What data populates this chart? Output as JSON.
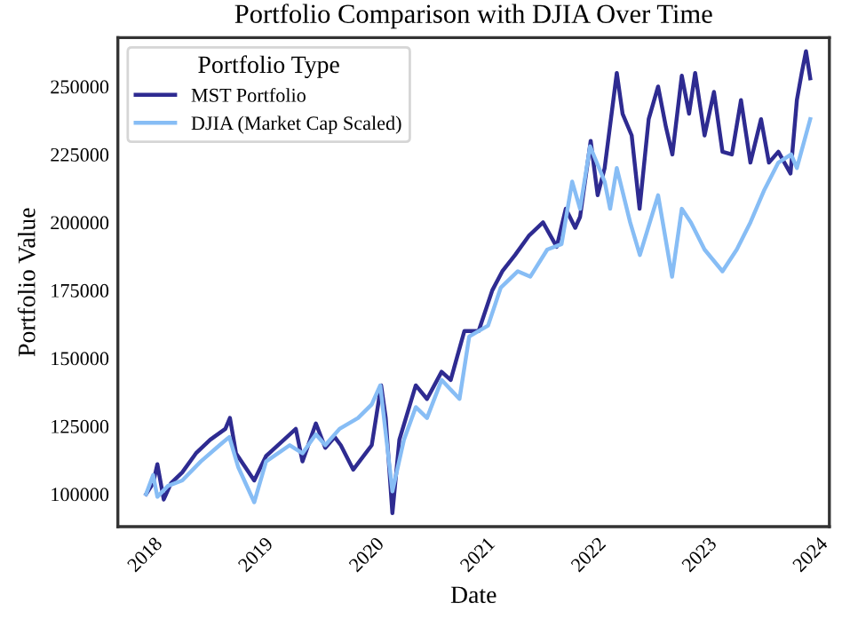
{
  "chart_data": {
    "type": "line",
    "title": "Portfolio Comparison with DJIA Over Time",
    "xlabel": "Date",
    "ylabel": "Portfolio Value",
    "legend_title": "Portfolio Type",
    "legend": "top left",
    "grid": false,
    "marker": "none",
    "line_style": "solid",
    "xlim": [
      "2017-10-01",
      "2024-03-01"
    ],
    "xticks": [
      {
        "value": "2018-01-01",
        "label": "2018"
      },
      {
        "value": "2019-01-01",
        "label": "2019"
      },
      {
        "value": "2020-01-01",
        "label": "2020"
      },
      {
        "value": "2021-01-01",
        "label": "2021"
      },
      {
        "value": "2022-01-01",
        "label": "2022"
      },
      {
        "value": "2023-01-01",
        "label": "2023"
      },
      {
        "value": "2024-01-01",
        "label": "2024"
      }
    ],
    "ylim": [
      88000,
      268000
    ],
    "yticks": [
      100000,
      125000,
      150000,
      175000,
      200000,
      225000,
      250000
    ],
    "series": [
      {
        "name": "MST Portfolio",
        "color": "#2e2b91",
        "x": [
          "2018-01-02",
          "2018-01-25",
          "2018-02-08",
          "2018-03-01",
          "2018-03-25",
          "2018-05-01",
          "2018-06-15",
          "2018-08-01",
          "2018-09-20",
          "2018-10-05",
          "2018-10-25",
          "2018-12-24",
          "2019-02-01",
          "2019-04-01",
          "2019-05-10",
          "2019-06-01",
          "2019-07-15",
          "2019-08-15",
          "2019-09-15",
          "2019-10-05",
          "2019-11-15",
          "2020-01-15",
          "2020-02-15",
          "2020-03-01",
          "2020-03-23",
          "2020-04-15",
          "2020-06-08",
          "2020-07-15",
          "2020-09-01",
          "2020-10-01",
          "2020-11-15",
          "2021-01-01",
          "2021-02-15",
          "2021-03-20",
          "2021-05-01",
          "2021-06-15",
          "2021-08-01",
          "2021-09-15",
          "2021-10-15",
          "2021-11-15",
          "2021-12-01",
          "2022-01-05",
          "2022-01-28",
          "2022-02-20",
          "2022-04-01",
          "2022-04-20",
          "2022-05-20",
          "2022-06-15",
          "2022-07-15",
          "2022-08-15",
          "2022-09-10",
          "2022-10-01",
          "2022-11-01",
          "2022-11-25",
          "2022-12-15",
          "2023-01-15",
          "2023-02-15",
          "2023-03-15",
          "2023-04-15",
          "2023-05-15",
          "2023-06-15",
          "2023-07-20",
          "2023-08-15",
          "2023-09-15",
          "2023-10-25",
          "2023-11-15",
          "2023-12-01",
          "2023-12-15",
          "2023-12-29"
        ],
        "values": [
          100000,
          104000,
          111000,
          98000,
          104000,
          108000,
          115000,
          120000,
          124000,
          128000,
          115000,
          105000,
          114000,
          120000,
          124000,
          112000,
          126000,
          117000,
          121000,
          118000,
          109000,
          118000,
          140000,
          128000,
          93000,
          120000,
          140000,
          135000,
          145000,
          142000,
          160000,
          160000,
          175000,
          182000,
          188000,
          195000,
          200000,
          191000,
          205000,
          198000,
          202000,
          230000,
          210000,
          220000,
          255000,
          240000,
          232000,
          205000,
          238000,
          250000,
          235000,
          225000,
          254000,
          240000,
          255000,
          232000,
          248000,
          226000,
          225000,
          245000,
          222000,
          238000,
          222000,
          226000,
          218000,
          245000,
          255000,
          263000,
          253000
        ]
      },
      {
        "name": "DJIA (Market Cap Scaled)",
        "color": "#87bdf5",
        "x": [
          "2018-01-02",
          "2018-01-25",
          "2018-02-08",
          "2018-03-15",
          "2018-05-01",
          "2018-07-01",
          "2018-09-01",
          "2018-10-03",
          "2018-11-01",
          "2018-12-24",
          "2019-02-01",
          "2019-04-20",
          "2019-06-01",
          "2019-07-15",
          "2019-08-15",
          "2019-10-01",
          "2019-12-01",
          "2020-01-15",
          "2020-02-12",
          "2020-03-23",
          "2020-04-30",
          "2020-06-08",
          "2020-07-15",
          "2020-09-01",
          "2020-10-30",
          "2020-12-01",
          "2021-02-01",
          "2021-03-15",
          "2021-05-10",
          "2021-06-20",
          "2021-08-15",
          "2021-10-01",
          "2021-11-05",
          "2021-12-01",
          "2022-01-03",
          "2022-02-20",
          "2022-03-10",
          "2022-04-01",
          "2022-05-15",
          "2022-06-16",
          "2022-08-15",
          "2022-09-30",
          "2022-11-01",
          "2022-12-01",
          "2023-01-15",
          "2023-03-15",
          "2023-05-01",
          "2023-06-15",
          "2023-07-31",
          "2023-09-15",
          "2023-10-27",
          "2023-11-15",
          "2023-12-29"
        ],
        "values": [
          100000,
          107000,
          99000,
          103000,
          105000,
          112000,
          118000,
          121000,
          110000,
          97000,
          112000,
          118000,
          115000,
          122000,
          118000,
          124000,
          128000,
          133000,
          140000,
          101000,
          120000,
          132000,
          128000,
          142000,
          135000,
          158000,
          162000,
          176000,
          182000,
          180000,
          190000,
          192000,
          215000,
          205000,
          228000,
          215000,
          205000,
          220000,
          200000,
          188000,
          210000,
          180000,
          205000,
          200000,
          190000,
          182000,
          190000,
          200000,
          212000,
          222000,
          225000,
          220000,
          238000
        ]
      }
    ]
  }
}
